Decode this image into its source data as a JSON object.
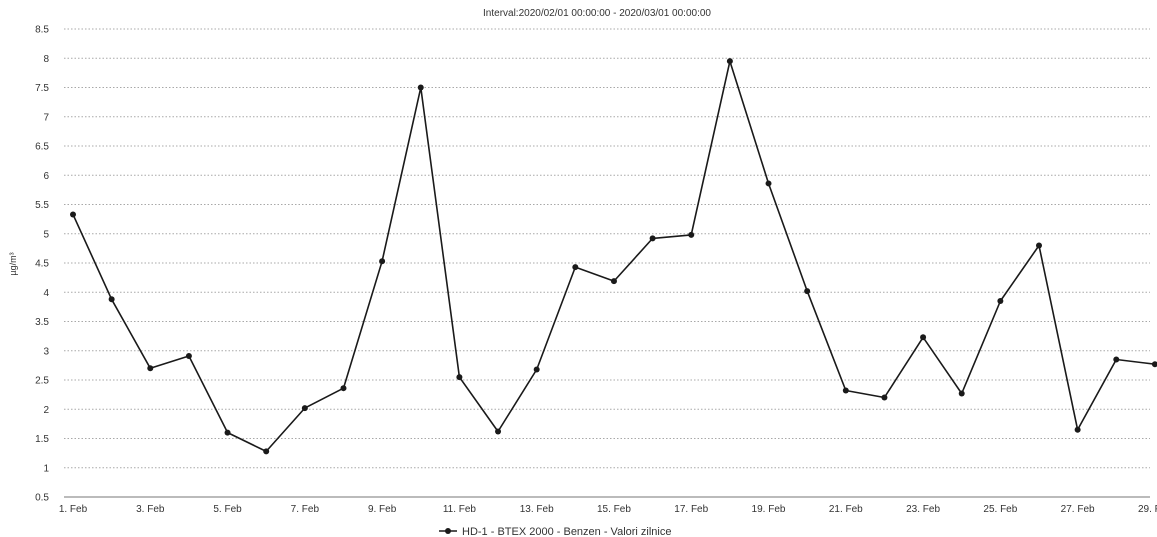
{
  "chart_data": {
    "type": "line",
    "title": "Interval:2020/02/01 00:00:00 - 2020/03/01 00:00:00",
    "xlabel": "",
    "ylabel": "µg/m³",
    "ylim": [
      0.5,
      8.5
    ],
    "y_ticks": [
      "0.5",
      "1",
      "1.5",
      "2",
      "2.5",
      "3",
      "3.5",
      "4",
      "4.5",
      "5",
      "5.5",
      "6",
      "6.5",
      "7",
      "7.5",
      "8",
      "8.5"
    ],
    "x_tick_labels": [
      "1. Feb",
      "3. Feb",
      "5. Feb",
      "7. Feb",
      "9. Feb",
      "11. Feb",
      "13. Feb",
      "15. Feb",
      "17. Feb",
      "19. Feb",
      "21. Feb",
      "23. Feb",
      "25. Feb",
      "27. Feb",
      "29. Feb"
    ],
    "x": [
      "1. Feb",
      "2. Feb",
      "3. Feb",
      "4. Feb",
      "5. Feb",
      "6. Feb",
      "7. Feb",
      "8. Feb",
      "9. Feb",
      "10. Feb",
      "11. Feb",
      "12. Feb",
      "13. Feb",
      "14. Feb",
      "15. Feb",
      "16. Feb",
      "17. Feb",
      "18. Feb",
      "19. Feb",
      "20. Feb",
      "21. Feb",
      "22. Feb",
      "23. Feb",
      "24. Feb",
      "25. Feb",
      "26. Feb",
      "27. Feb",
      "28. Feb",
      "29. Feb"
    ],
    "series": [
      {
        "name": "HD-1 - BTEX 2000 - Benzen - Valori zilnice",
        "color": "#1a1a1a",
        "values": [
          5.33,
          3.88,
          2.7,
          2.91,
          1.6,
          1.28,
          2.02,
          2.36,
          4.53,
          7.5,
          2.55,
          1.62,
          2.68,
          4.43,
          4.19,
          4.92,
          4.98,
          7.95,
          5.86,
          4.02,
          2.32,
          2.2,
          3.23,
          2.27,
          3.85,
          4.8,
          1.65,
          2.85,
          2.77
        ]
      }
    ],
    "grid": true,
    "legend_position": "bottom-center"
  }
}
